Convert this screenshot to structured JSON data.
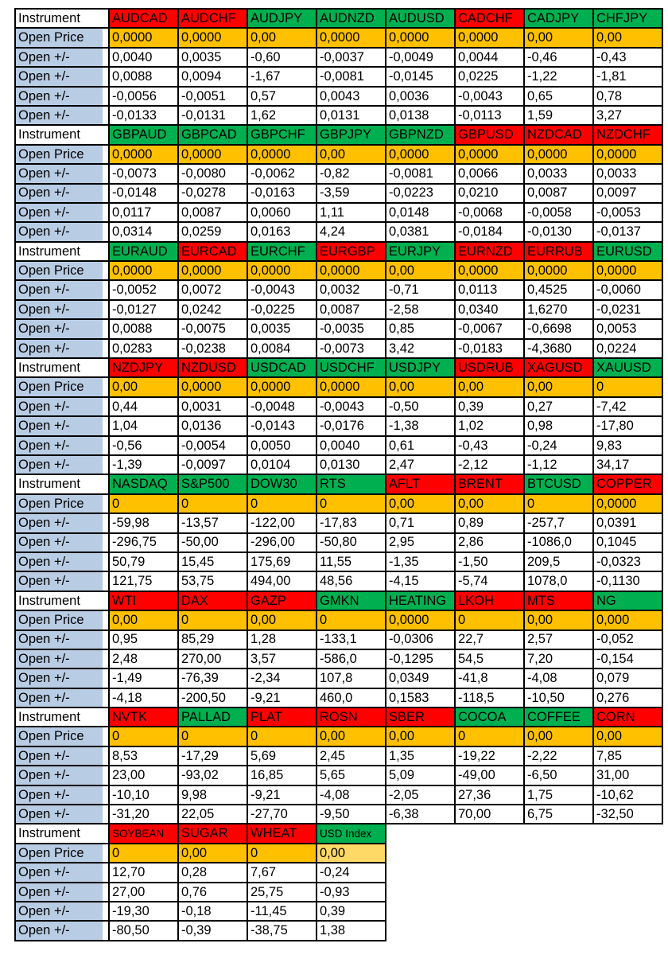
{
  "row_labels": {
    "instrument": "Instrument",
    "open_price": "Open Price",
    "open_change": "Open +/-"
  },
  "colors": {
    "header_up_green": "#00B050",
    "header_down_red": "#FF0000",
    "open_price_orange": "#FFC000",
    "open_price_light_orange": "#FFD966",
    "row_label_blue": "#B8CCE4",
    "grid_border_black": "#000000"
  },
  "blocks": [
    {
      "instruments": [
        {
          "name": "AUDCAD",
          "header_color": "red",
          "open_price": "0,0000",
          "changes": [
            "0,0040",
            "0,0088",
            "-0,0056",
            "-0,0133"
          ]
        },
        {
          "name": "AUDCHF",
          "header_color": "red",
          "open_price": "0,0000",
          "changes": [
            "0,0035",
            "0,0094",
            "-0,0051",
            "-0,0131"
          ]
        },
        {
          "name": "AUDJPY",
          "header_color": "green",
          "open_price": "0,00",
          "changes": [
            "-0,60",
            "-1,67",
            "0,57",
            "1,62"
          ]
        },
        {
          "name": "AUDNZD",
          "header_color": "green",
          "open_price": "0,0000",
          "changes": [
            "-0,0037",
            "-0,0081",
            "0,0043",
            "0,0131"
          ]
        },
        {
          "name": "AUDUSD",
          "header_color": "green",
          "open_price": "0,0000",
          "changes": [
            "-0,0049",
            "-0,0145",
            "0,0036",
            "0,0138"
          ]
        },
        {
          "name": "CADCHF",
          "header_color": "red",
          "open_price": "0,0000",
          "changes": [
            "0,0044",
            "0,0225",
            "-0,0043",
            "-0,0113"
          ]
        },
        {
          "name": "CADJPY",
          "header_color": "green",
          "open_price": "0,00",
          "changes": [
            "-0,46",
            "-1,22",
            "0,65",
            "1,59"
          ]
        },
        {
          "name": "CHFJPY",
          "header_color": "green",
          "open_price": "0,00",
          "changes": [
            "-0,43",
            "-1,81",
            "0,78",
            "3,27"
          ]
        }
      ]
    },
    {
      "instruments": [
        {
          "name": "GBPAUD",
          "header_color": "green",
          "open_price": "0,0000",
          "changes": [
            "-0,0073",
            "-0,0148",
            "0,0117",
            "0,0314"
          ]
        },
        {
          "name": "GBPCAD",
          "header_color": "green",
          "open_price": "0,0000",
          "changes": [
            "-0,0080",
            "-0,0278",
            "0,0087",
            "0,0259"
          ]
        },
        {
          "name": "GBPCHF",
          "header_color": "green",
          "open_price": "0,0000",
          "changes": [
            "-0,0062",
            "-0,0163",
            "0,0060",
            "0,0163"
          ]
        },
        {
          "name": "GBPJPY",
          "header_color": "green",
          "open_price": "0,00",
          "changes": [
            "-0,82",
            "-3,59",
            "1,11",
            "4,24"
          ]
        },
        {
          "name": "GBPNZD",
          "header_color": "green",
          "open_price": "0,0000",
          "changes": [
            "-0,0081",
            "-0,0223",
            "0,0148",
            "0,0381"
          ]
        },
        {
          "name": "GBPUSD",
          "header_color": "red",
          "open_price": "0,0000",
          "changes": [
            "0,0066",
            "0,0210",
            "-0,0068",
            "-0,0184"
          ]
        },
        {
          "name": "NZDCAD",
          "header_color": "red",
          "open_price": "0,0000",
          "changes": [
            "0,0033",
            "0,0087",
            "-0,0058",
            "-0,0130"
          ]
        },
        {
          "name": "NZDCHF",
          "header_color": "red",
          "open_price": "0,0000",
          "changes": [
            "0,0033",
            "0,0097",
            "-0,0053",
            "-0,0137"
          ]
        }
      ]
    },
    {
      "instruments": [
        {
          "name": "EURAUD",
          "header_color": "green",
          "open_price": "0,0000",
          "changes": [
            "-0,0052",
            "-0,0127",
            "0,0088",
            "0,0283"
          ]
        },
        {
          "name": "EURCAD",
          "header_color": "red",
          "open_price": "0,0000",
          "changes": [
            "0,0072",
            "0,0242",
            "-0,0075",
            "-0,0238"
          ]
        },
        {
          "name": "EURCHF",
          "header_color": "green",
          "open_price": "0,0000",
          "changes": [
            "-0,0043",
            "-0,0225",
            "0,0035",
            "0,0084"
          ]
        },
        {
          "name": "EURGBP",
          "header_color": "red",
          "open_price": "0,0000",
          "changes": [
            "0,0032",
            "0,0087",
            "-0,0035",
            "-0,0073"
          ]
        },
        {
          "name": "EURJPY",
          "header_color": "green",
          "open_price": "0,00",
          "changes": [
            "-0,71",
            "-2,58",
            "0,85",
            "3,42"
          ]
        },
        {
          "name": "EURNZD",
          "header_color": "red",
          "open_price": "0,0000",
          "changes": [
            "0,0113",
            "0,0340",
            "-0,0067",
            "-0,0183"
          ]
        },
        {
          "name": "EURRUB",
          "header_color": "red",
          "open_price": "0,0000",
          "changes": [
            "0,4525",
            "1,6270",
            "-0,6698",
            "-4,3680"
          ]
        },
        {
          "name": "EURUSD",
          "header_color": "green",
          "open_price": "0,0000",
          "changes": [
            "-0,0060",
            "-0,0231",
            "0,0053",
            "0,0224"
          ]
        }
      ]
    },
    {
      "instruments": [
        {
          "name": "NZDJPY",
          "header_color": "red",
          "open_price": "0,00",
          "changes": [
            "0,44",
            "1,04",
            "-0,56",
            "-1,39"
          ]
        },
        {
          "name": "NZDUSD",
          "header_color": "red",
          "open_price": "0,0000",
          "changes": [
            "0,0031",
            "0,0136",
            "-0,0054",
            "-0,0097"
          ]
        },
        {
          "name": "USDCAD",
          "header_color": "green",
          "open_price": "0,0000",
          "changes": [
            "-0,0048",
            "-0,0143",
            "0,0050",
            "0,0104"
          ]
        },
        {
          "name": "USDCHF",
          "header_color": "green",
          "open_price": "0,0000",
          "changes": [
            "-0,0043",
            "-0,0176",
            "0,0040",
            "0,0130"
          ]
        },
        {
          "name": "USDJPY",
          "header_color": "green",
          "open_price": "0,00",
          "changes": [
            "-0,50",
            "-1,38",
            "0,61",
            "2,47"
          ]
        },
        {
          "name": "USDRUB",
          "header_color": "red",
          "open_price": "0,00",
          "changes": [
            "0,39",
            "1,02",
            "-0,43",
            "-2,12"
          ]
        },
        {
          "name": "XAGUSD",
          "header_color": "red",
          "open_price": "0,00",
          "changes": [
            "0,27",
            "0,98",
            "-0,24",
            "-1,12"
          ]
        },
        {
          "name": "XAUUSD",
          "header_color": "green",
          "open_price": "0",
          "changes": [
            "-7,42",
            "-17,80",
            "9,83",
            "34,17"
          ]
        }
      ]
    },
    {
      "instruments": [
        {
          "name": "NASDAQ",
          "header_color": "green",
          "open_price": "0",
          "changes": [
            "-59,98",
            "-296,75",
            "50,79",
            "121,75"
          ]
        },
        {
          "name": "S&P500",
          "header_color": "green",
          "open_price": "0",
          "changes": [
            "-13,57",
            "-50,00",
            "15,45",
            "53,75"
          ]
        },
        {
          "name": "DOW30",
          "header_color": "green",
          "open_price": "0",
          "changes": [
            "-122,00",
            "-296,00",
            "175,69",
            "494,00"
          ]
        },
        {
          "name": "RTS",
          "header_color": "green",
          "open_price": "0",
          "changes": [
            "-17,83",
            "-50,80",
            "11,55",
            "48,56"
          ]
        },
        {
          "name": "AFLT",
          "header_color": "red",
          "open_price": "0,00",
          "changes": [
            "0,71",
            "2,95",
            "-1,35",
            "-4,15"
          ]
        },
        {
          "name": "BRENT",
          "header_color": "red",
          "open_price": "0,00",
          "changes": [
            "0,89",
            "2,86",
            "-1,50",
            "-5,74"
          ]
        },
        {
          "name": "BTCUSD",
          "header_color": "green",
          "open_price": "0",
          "changes": [
            "-257,7",
            "-1086,0",
            "209,5",
            "1078,0"
          ]
        },
        {
          "name": "COPPER",
          "header_color": "red",
          "open_price": "0,0000",
          "changes": [
            "0,0391",
            "0,1045",
            "-0,0323",
            "-0,1130"
          ]
        }
      ]
    },
    {
      "instruments": [
        {
          "name": "WTI",
          "header_color": "red",
          "open_price": "0,00",
          "changes": [
            "0,95",
            "2,48",
            "-1,49",
            "-4,18"
          ]
        },
        {
          "name": "DAX",
          "header_color": "red",
          "open_price": "0",
          "changes": [
            "85,29",
            "270,00",
            "-76,39",
            "-200,50"
          ]
        },
        {
          "name": "GAZP",
          "header_color": "red",
          "open_price": "0,00",
          "changes": [
            "1,28",
            "3,57",
            "-2,34",
            "-9,21"
          ]
        },
        {
          "name": "GMKN",
          "header_color": "green",
          "open_price": "0",
          "changes": [
            "-133,1",
            "-586,0",
            "107,8",
            "460,0"
          ]
        },
        {
          "name": "HEATING",
          "header_color": "green",
          "open_price": "0,0000",
          "changes": [
            "-0,0306",
            "-0,1295",
            "0,0349",
            "0,1583"
          ]
        },
        {
          "name": "LKOH",
          "header_color": "red",
          "open_price": "0",
          "changes": [
            "22,7",
            "54,5",
            "-41,8",
            "-118,5"
          ]
        },
        {
          "name": "MTS",
          "header_color": "red",
          "open_price": "0,00",
          "changes": [
            "2,57",
            "7,20",
            "-4,08",
            "-10,50"
          ]
        },
        {
          "name": "NG",
          "header_color": "green",
          "open_price": "0,000",
          "changes": [
            "-0,052",
            "-0,154",
            "0,079",
            "0,276"
          ]
        }
      ]
    },
    {
      "instruments": [
        {
          "name": "NVTK",
          "header_color": "red",
          "open_price": "0",
          "changes": [
            "8,53",
            "23,00",
            "-10,10",
            "-31,20"
          ]
        },
        {
          "name": "PALLAD",
          "header_color": "green",
          "open_price": "0",
          "changes": [
            "-17,29",
            "-93,02",
            "9,98",
            "22,05"
          ]
        },
        {
          "name": "PLAT",
          "header_color": "red",
          "open_price": "0",
          "changes": [
            "5,69",
            "16,85",
            "-9,21",
            "-27,70"
          ]
        },
        {
          "name": "ROSN",
          "header_color": "red",
          "open_price": "0,00",
          "changes": [
            "2,45",
            "5,65",
            "-4,08",
            "-9,50"
          ]
        },
        {
          "name": "SBER",
          "header_color": "red",
          "open_price": "0,00",
          "changes": [
            "1,35",
            "5,09",
            "-2,05",
            "-6,38"
          ]
        },
        {
          "name": "COCOA",
          "header_color": "green",
          "open_price": "0",
          "changes": [
            "-19,22",
            "-49,00",
            "27,36",
            "70,00"
          ]
        },
        {
          "name": "COFFEE",
          "header_color": "green",
          "open_price": "0,00",
          "changes": [
            "-2,22",
            "-6,50",
            "1,75",
            "6,75"
          ]
        },
        {
          "name": "CORN",
          "header_color": "red",
          "open_price": "0,00",
          "changes": [
            "7,85",
            "31,00",
            "-10,62",
            "-32,50"
          ]
        }
      ]
    },
    {
      "instruments": [
        {
          "name": "SOYBEAN",
          "header_color": "red",
          "shrink": true,
          "open_price": "0",
          "changes": [
            "12,70",
            "27,00",
            "-19,30",
            "-80,50"
          ]
        },
        {
          "name": "SUGAR",
          "header_color": "red",
          "open_price": "0,00",
          "changes": [
            "0,28",
            "0,76",
            "-0,18",
            "-0,39"
          ]
        },
        {
          "name": "WHEAT",
          "header_color": "red",
          "open_price": "0",
          "changes": [
            "7,67",
            "25,75",
            "-11,45",
            "-38,75"
          ]
        },
        {
          "name": "USD Index",
          "header_color": "green",
          "shrink": true,
          "open_price_shade": "light",
          "open_price": "0,00",
          "changes": [
            "-0,24",
            "-0,93",
            "0,39",
            "1,38"
          ]
        }
      ]
    }
  ]
}
